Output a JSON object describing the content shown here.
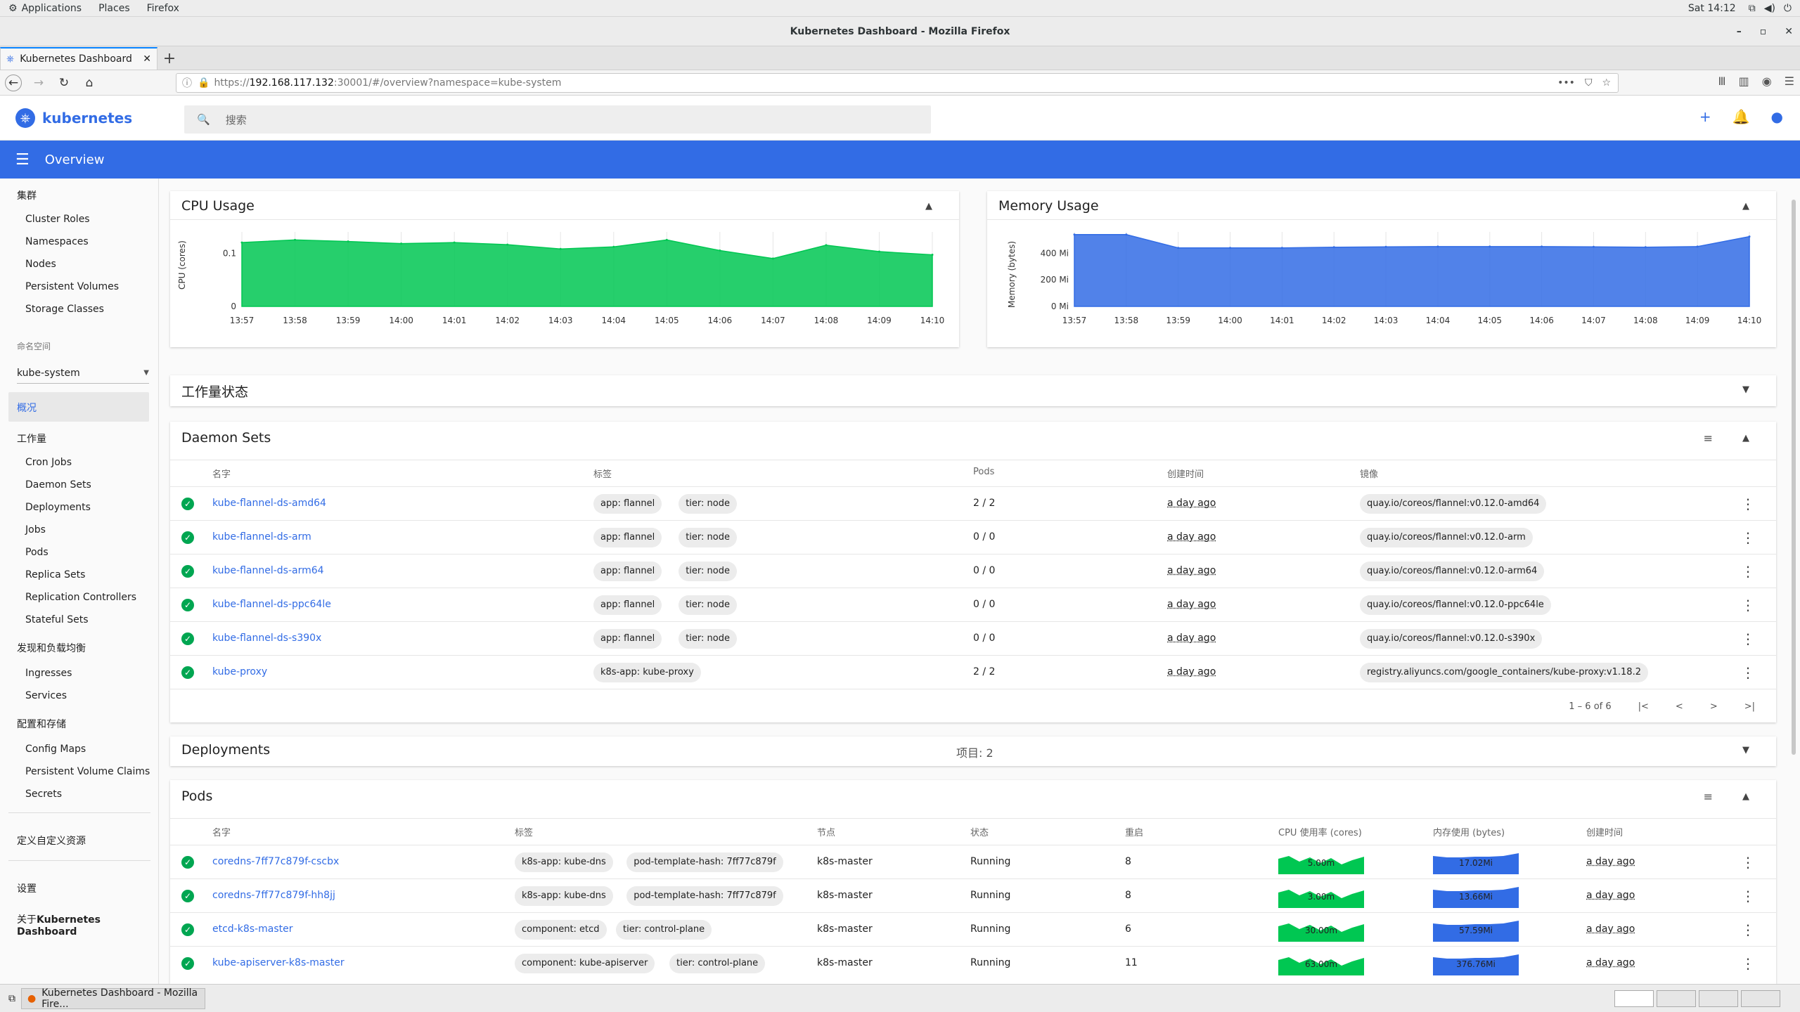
{
  "system": {
    "menus": [
      "Applications",
      "Places",
      "Firefox"
    ],
    "clock": "Sat 14:12"
  },
  "window": {
    "title": "Kubernetes Dashboard - Mozilla Firefox"
  },
  "browser": {
    "tab_label": "Kubernetes Dashboard",
    "url_prefix": "https://",
    "url_host": "192.168.117.132",
    "url_rest": ":30001/#/overview?namespace=kube-system"
  },
  "app": {
    "logo_text": "kubernetes",
    "search_placeholder": "搜索",
    "toolbar_title": "Overview",
    "accent": "#326ce5"
  },
  "sidebar": {
    "cluster_heading": "集群",
    "cluster_items": [
      "Cluster Roles",
      "Namespaces",
      "Nodes",
      "Persistent Volumes",
      "Storage Classes"
    ],
    "namespace_label": "命名空间",
    "namespace_value": "kube-system",
    "overview_label": "概况",
    "workload_heading": "工作量",
    "workload_items": [
      "Cron Jobs",
      "Daemon Sets",
      "Deployments",
      "Jobs",
      "Pods",
      "Replica Sets",
      "Replication Controllers",
      "Stateful Sets"
    ],
    "discovery_heading": "发现和负载均衡",
    "discovery_items": [
      "Ingresses",
      "Services"
    ],
    "config_heading": "配置和存储",
    "config_items": [
      "Config Maps",
      "Persistent Volume Claims",
      "Secrets"
    ],
    "crd_label": "定义自定义资源",
    "settings_label": "设置",
    "about_prefix": "关于",
    "about_name": "Kubernetes Dashboard"
  },
  "cpu_card": {
    "title": "CPU Usage"
  },
  "memory_card": {
    "title": "Memory Usage"
  },
  "chart_data": [
    {
      "type": "area",
      "title": "CPU Usage",
      "ylabel": "CPU (cores)",
      "x": [
        "13:57",
        "13:58",
        "13:59",
        "14:00",
        "14:01",
        "14:02",
        "14:03",
        "14:04",
        "14:05",
        "14:06",
        "14:07",
        "14:08",
        "14:09",
        "14:10"
      ],
      "y_ticks": [
        "0",
        "0.1"
      ],
      "ylim": [
        0,
        0.14
      ],
      "values": [
        0.12,
        0.125,
        0.122,
        0.118,
        0.12,
        0.116,
        0.108,
        0.112,
        0.125,
        0.105,
        0.09,
        0.115,
        0.103,
        0.097
      ],
      "color": "#00c752"
    },
    {
      "type": "area",
      "title": "Memory Usage",
      "ylabel": "Memory (bytes)",
      "x": [
        "13:57",
        "13:58",
        "13:59",
        "14:00",
        "14:01",
        "14:02",
        "14:03",
        "14:04",
        "14:05",
        "14:06",
        "14:07",
        "14:08",
        "14:09",
        "14:10"
      ],
      "y_ticks": [
        "0 Mi",
        "200 Mi",
        "400 Mi"
      ],
      "ylim": [
        0,
        560
      ],
      "values": [
        540,
        540,
        440,
        440,
        440,
        445,
        448,
        450,
        450,
        450,
        448,
        445,
        450,
        525
      ],
      "color": "#326ce5"
    }
  ],
  "workload_status": {
    "title": "工作量状态"
  },
  "daemon_sets": {
    "title": "Daemon Sets",
    "headers": [
      "名字",
      "标签",
      "Pods",
      "创建时间",
      "镜像"
    ],
    "rows": [
      {
        "name": "kube-flannel-ds-amd64",
        "labels": [
          "app: flannel",
          "tier: node"
        ],
        "pods": "2 / 2",
        "created": "a day ago",
        "image": "quay.io/coreos/flannel:v0.12.0-amd64"
      },
      {
        "name": "kube-flannel-ds-arm",
        "labels": [
          "app: flannel",
          "tier: node"
        ],
        "pods": "0 / 0",
        "created": "a day ago",
        "image": "quay.io/coreos/flannel:v0.12.0-arm"
      },
      {
        "name": "kube-flannel-ds-arm64",
        "labels": [
          "app: flannel",
          "tier: node"
        ],
        "pods": "0 / 0",
        "created": "a day ago",
        "image": "quay.io/coreos/flannel:v0.12.0-arm64"
      },
      {
        "name": "kube-flannel-ds-ppc64le",
        "labels": [
          "app: flannel",
          "tier: node"
        ],
        "pods": "0 / 0",
        "created": "a day ago",
        "image": "quay.io/coreos/flannel:v0.12.0-ppc64le"
      },
      {
        "name": "kube-flannel-ds-s390x",
        "labels": [
          "app: flannel",
          "tier: node"
        ],
        "pods": "0 / 0",
        "created": "a day ago",
        "image": "quay.io/coreos/flannel:v0.12.0-s390x"
      },
      {
        "name": "kube-proxy",
        "labels": [
          "k8s-app: kube-proxy"
        ],
        "pods": "2 / 2",
        "created": "a day ago",
        "image": "registry.aliyuncs.com/google_containers/kube-proxy:v1.18.2"
      }
    ],
    "pager_text": "1 – 6 of 6"
  },
  "deployments": {
    "title": "Deployments",
    "count_text": "项目: 2"
  },
  "pods": {
    "title": "Pods",
    "headers": [
      "名字",
      "标签",
      "节点",
      "状态",
      "重启",
      "CPU 使用率 (cores)",
      "内存使用 (bytes)",
      "创建时间"
    ],
    "rows": [
      {
        "name": "coredns-7ff77c879f-cscbx",
        "labels": [
          "k8s-app: kube-dns",
          "pod-template-hash: 7ff77c879f"
        ],
        "node": "k8s-master",
        "status": "Running",
        "restarts": "8",
        "cpu": "5.00m",
        "mem": "17.02Mi",
        "created": "a day ago"
      },
      {
        "name": "coredns-7ff77c879f-hh8jj",
        "labels": [
          "k8s-app: kube-dns",
          "pod-template-hash: 7ff77c879f"
        ],
        "node": "k8s-master",
        "status": "Running",
        "restarts": "8",
        "cpu": "3.00m",
        "mem": "13.66Mi",
        "created": "a day ago"
      },
      {
        "name": "etcd-k8s-master",
        "labels": [
          "component: etcd",
          "tier: control-plane"
        ],
        "node": "k8s-master",
        "status": "Running",
        "restarts": "6",
        "cpu": "30.00m",
        "mem": "57.59Mi",
        "created": "a day ago"
      },
      {
        "name": "kube-apiserver-k8s-master",
        "labels": [
          "component: kube-apiserver",
          "tier: control-plane"
        ],
        "node": "k8s-master",
        "status": "Running",
        "restarts": "11",
        "cpu": "63.00m",
        "mem": "376.76Mi",
        "created": "a day ago"
      }
    ]
  },
  "taskbar": {
    "item_label": "Kubernetes Dashboard - Mozilla Fire..."
  }
}
